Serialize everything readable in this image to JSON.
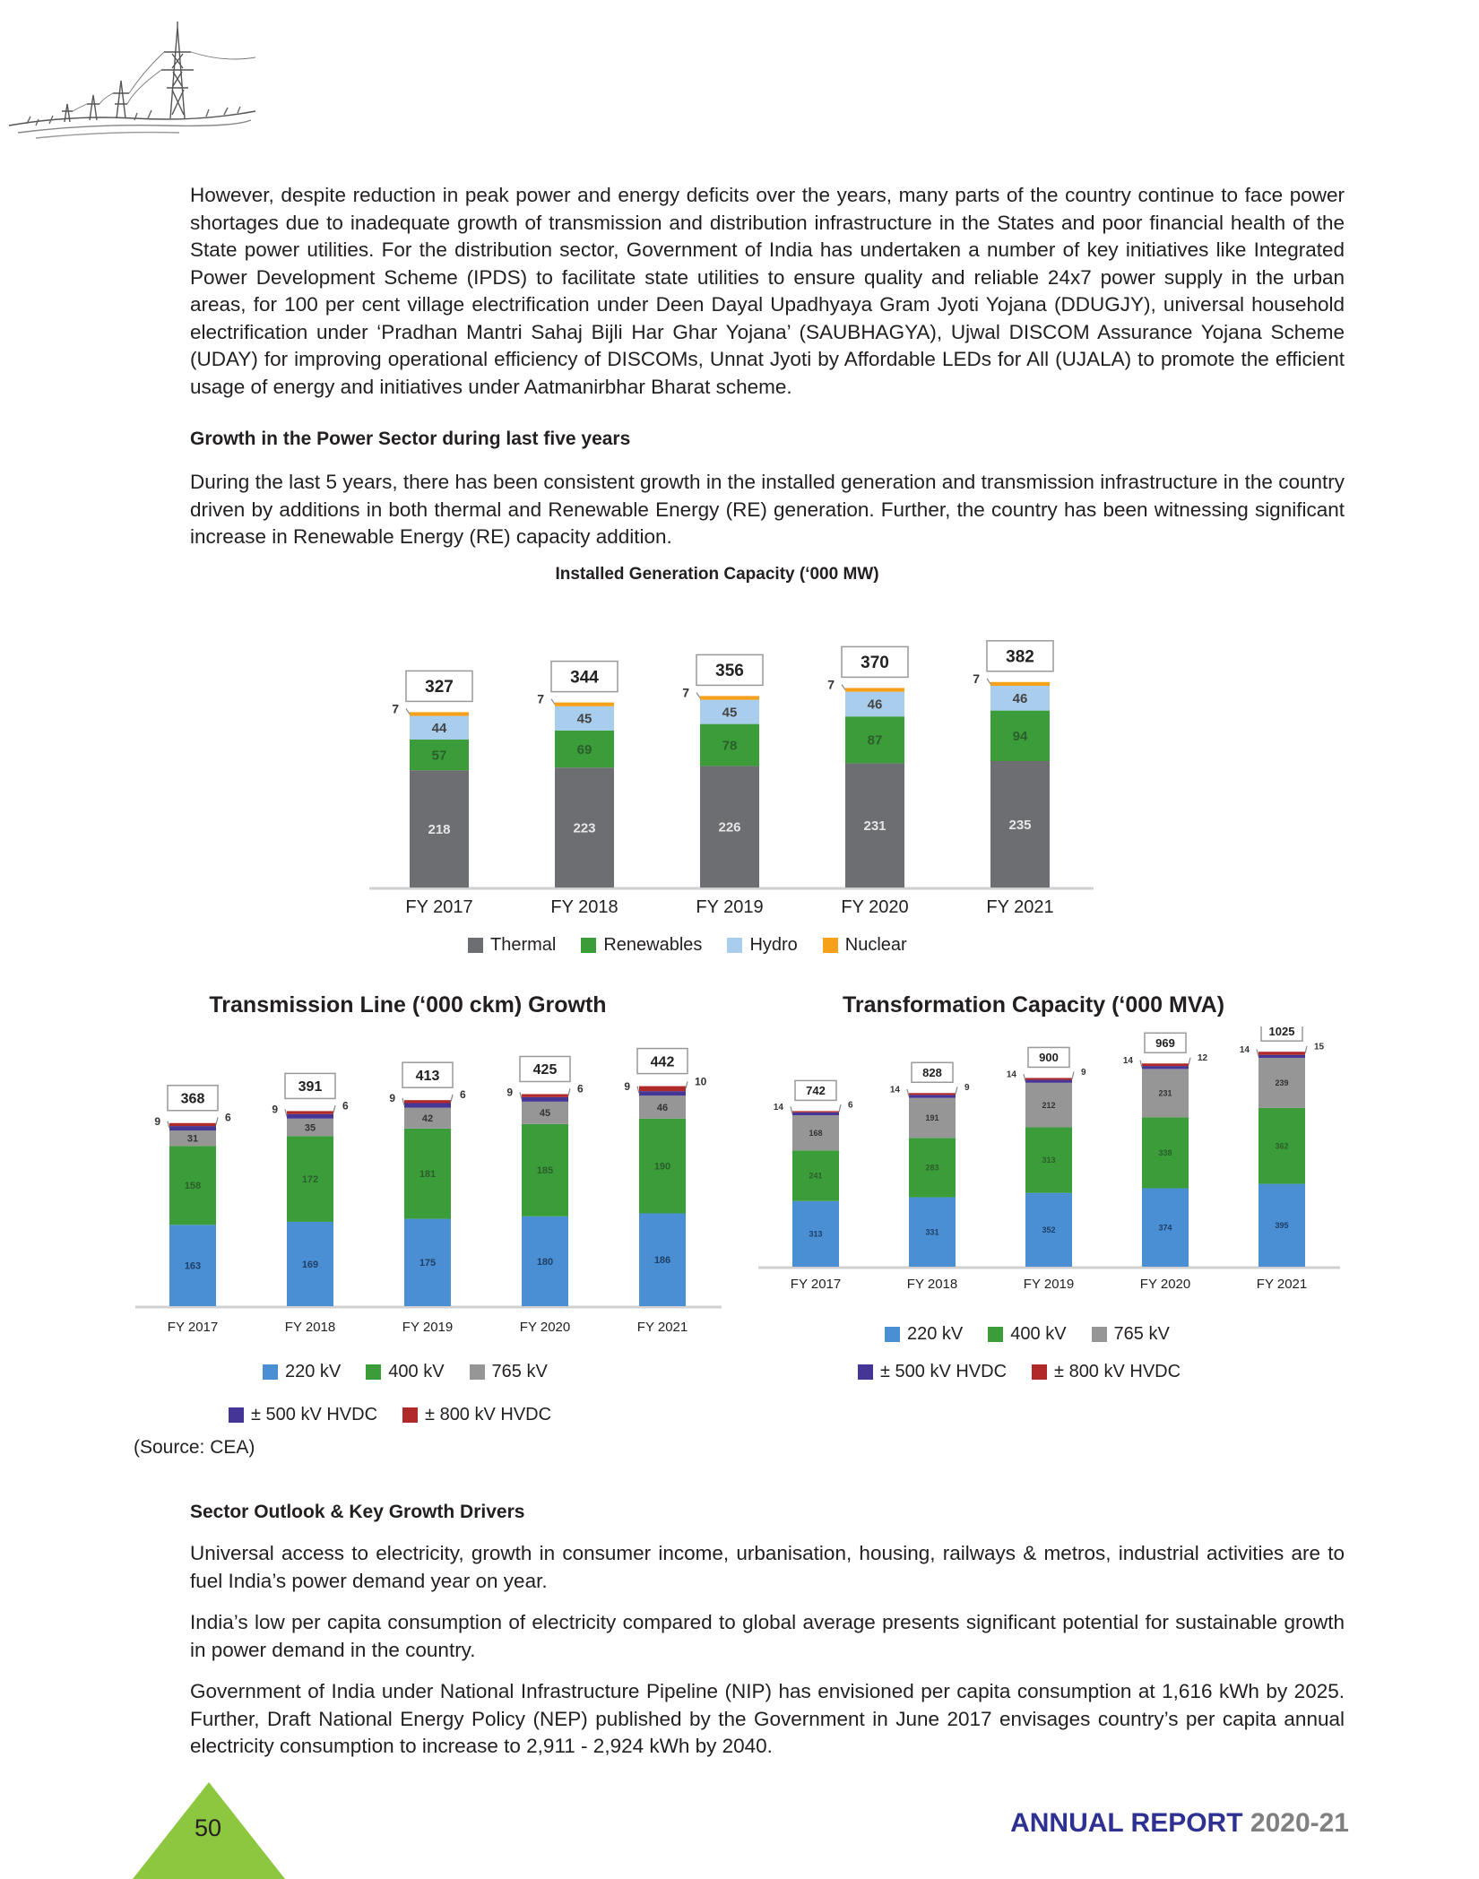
{
  "intro_paragraph": "However, despite reduction in peak power and energy deficits over the years, many parts of the country continue to face power shortages due to inadequate growth of transmission and distribution infrastructure in the States and poor financial health of the State power utilities. For the distribution sector, Government of India has undertaken a number of key initiatives like Integrated Power Development Scheme (IPDS) to facilitate state utilities to ensure quality and reliable 24x7 power supply in the urban areas, for 100 per cent village electrification under Deen Dayal Upadhyaya Gram Jyoti Yojana (DDUGJY), universal household electrification under ‘Pradhan Mantri Sahaj Bijli Har Ghar Yojana’ (SAUBHAGYA), Ujwal DISCOM Assurance Yojana Scheme (UDAY) for improving operational efficiency of DISCOMs, Unnat Jyoti by Affordable LEDs for All (UJALA) to promote the efficient usage of energy and initiatives under Aatmanirbhar Bharat scheme.",
  "growth_heading": "Growth in the Power Sector during last five years",
  "growth_paragraph": "During the last 5 years, there has been consistent growth in the installed generation and transmission infrastructure in the country driven by additions in both thermal and Renewable Energy (RE) generation. Further, the country has been witnessing significant increase in Renewable Energy (RE) capacity addition.",
  "chart_data": [
    {
      "type": "bar",
      "stacked": true,
      "title": "Installed Generation Capacity (‘000 MW)",
      "categories": [
        "FY 2017",
        "FY 2018",
        "FY 2019",
        "FY 2020",
        "FY 2021"
      ],
      "series": [
        {
          "name": "Thermal",
          "color": "#6d6e71",
          "values": [
            218,
            223,
            226,
            231,
            235
          ]
        },
        {
          "name": "Renewables",
          "color": "#3a9d3a",
          "values": [
            57,
            69,
            78,
            87,
            94
          ]
        },
        {
          "name": "Hydro",
          "color": "#a9cdec",
          "values": [
            44,
            45,
            45,
            46,
            46
          ]
        },
        {
          "name": "Nuclear",
          "color": "#f7a11a",
          "values": [
            7,
            7,
            7,
            7,
            7
          ]
        }
      ],
      "totals": [
        327,
        344,
        356,
        370,
        382
      ],
      "ylim": [
        0,
        400
      ],
      "legend": "bottom",
      "grid": false
    },
    {
      "type": "bar",
      "stacked": true,
      "title": "Transmission Line (‘000 ckm) Growth",
      "categories": [
        "FY 2017",
        "FY 2018",
        "FY 2019",
        "FY 2020",
        "FY 2021"
      ],
      "series": [
        {
          "name": "220 kV",
          "color": "#4a8fd4",
          "values": [
            163,
            169,
            175,
            180,
            186
          ]
        },
        {
          "name": "400 kV",
          "color": "#3a9d3a",
          "values": [
            158,
            172,
            181,
            185,
            190
          ]
        },
        {
          "name": "765 kV",
          "color": "#969696",
          "values": [
            31,
            35,
            42,
            45,
            46
          ]
        },
        {
          "name": "± 500 kV HVDC",
          "color": "#453597",
          "values": [
            9,
            9,
            9,
            9,
            9
          ]
        },
        {
          "name": "± 800 kV HVDC",
          "color": "#b02a2a",
          "values": [
            6,
            6,
            6,
            6,
            10
          ]
        }
      ],
      "totals": [
        368,
        391,
        413,
        425,
        442
      ],
      "ylim": [
        0,
        460
      ],
      "legend": "bottom",
      "grid": false
    },
    {
      "type": "bar",
      "stacked": true,
      "title": "Transformation Capacity (‘000 MVA)",
      "categories": [
        "FY 2017",
        "FY 2018",
        "FY 2019",
        "FY 2020",
        "FY 2021"
      ],
      "series": [
        {
          "name": "220 kV",
          "color": "#4a8fd4",
          "values": [
            313,
            331,
            352,
            374,
            395
          ]
        },
        {
          "name": "400 kV",
          "color": "#3a9d3a",
          "values": [
            241,
            283,
            313,
            338,
            362
          ]
        },
        {
          "name": "765 kV",
          "color": "#969696",
          "values": [
            168,
            191,
            212,
            231,
            239
          ]
        },
        {
          "name": "± 500 kV HVDC",
          "color": "#453597",
          "values": [
            14,
            14,
            14,
            14,
            14
          ]
        },
        {
          "name": "± 800 kV HVDC",
          "color": "#b02a2a",
          "values": [
            6,
            9,
            9,
            12,
            15
          ]
        }
      ],
      "totals": [
        742,
        828,
        900,
        969,
        1025
      ],
      "ylim": [
        0,
        1060
      ],
      "legend": "bottom",
      "grid": false
    }
  ],
  "source": "(Source: CEA)",
  "outlook_heading": "Sector Outlook & Key Growth Drivers",
  "outlook_paragraphs": [
    "Universal access to electricity, growth in consumer income, urbanisation, housing, railways & metros, industrial activities are to fuel India’s power demand year on year.",
    "India’s low per capita consumption of electricity compared to global average presents significant potential for sustainable growth in power demand in the country.",
    "Government of India under National Infrastructure Pipeline (NIP) has envisioned per capita consumption at 1,616 kWh by 2025. Further, Draft National Energy Policy (NEP) published by the Government in June 2017 envisages country’s per capita annual electricity consumption to increase to 2,911 - 2,924 kWh by 2040."
  ],
  "footer": {
    "page_number": "50",
    "report_label": "ANNUAL REPORT",
    "report_year": "2020-21",
    "label_color": "#2e3192",
    "year_color": "#808080",
    "triangle_color": "#8dc63f"
  },
  "header_art": "power-pylon-sketch"
}
